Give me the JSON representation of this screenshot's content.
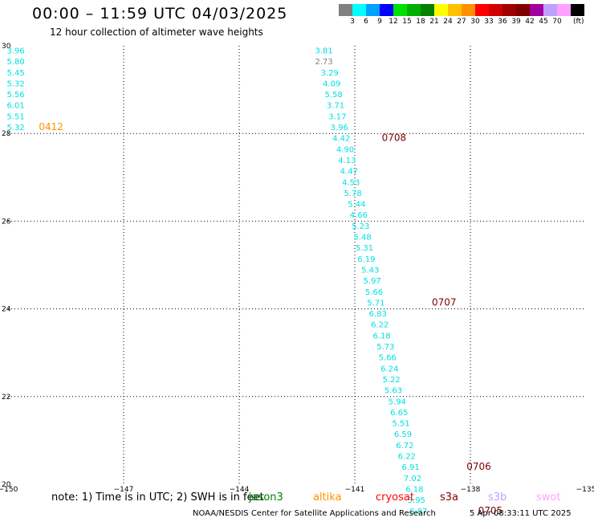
{
  "title": "00:00 – 11:59 UTC 04/03/2025",
  "subtitle": "12 hour collection of altimeter wave heights",
  "colorbar": {
    "labels": [
      "3",
      "6",
      "9",
      "12",
      "15",
      "18",
      "21",
      "24",
      "27",
      "30",
      "33",
      "36",
      "39",
      "42",
      "45",
      "70"
    ],
    "unit": "(ft)",
    "colors": [
      "#808080",
      "#00ffff",
      "#00a0ff",
      "#0000ff",
      "#00e000",
      "#00b000",
      "#008000",
      "#ffff00",
      "#ffc000",
      "#ff9000",
      "#ff0000",
      "#d00000",
      "#a00000",
      "#800000",
      "#a000a0",
      "#c0a0ff",
      "#ffa0ff",
      "#000000"
    ]
  },
  "map": {
    "lon_ticks": [
      "−150",
      "−147",
      "−144",
      "−141",
      "−138",
      "−135"
    ],
    "lat_ticks": [
      "30",
      "28",
      "26",
      "24",
      "22",
      "20"
    ],
    "lon_range": [
      -150,
      -135
    ],
    "lat_range": [
      20,
      30
    ]
  },
  "track1": {
    "color": "#00e0e0",
    "points": [
      {
        "lon": -149.8,
        "lat": 29.9,
        "v": "3.96"
      },
      {
        "lon": -149.8,
        "lat": 29.65,
        "v": "5.80"
      },
      {
        "lon": -149.8,
        "lat": 29.4,
        "v": "5.45"
      },
      {
        "lon": -149.8,
        "lat": 29.15,
        "v": "5.32"
      },
      {
        "lon": -149.8,
        "lat": 28.9,
        "v": "5.56"
      },
      {
        "lon": -149.8,
        "lat": 28.65,
        "v": "6.01"
      },
      {
        "lon": -149.8,
        "lat": 28.4,
        "v": "5.51"
      },
      {
        "lon": -149.8,
        "lat": 28.15,
        "v": "5.32"
      }
    ],
    "label": {
      "text": "0412",
      "color": "#ff9000",
      "lon": -149.2,
      "lat": 28.15
    }
  },
  "track2": {
    "color": "#00e0e0",
    "points": [
      {
        "lon": -141.8,
        "lat": 29.9,
        "v": "3.81"
      },
      {
        "lon": -141.8,
        "lat": 29.65,
        "v": "2.73",
        "color": "#808080"
      },
      {
        "lon": -141.65,
        "lat": 29.4,
        "v": "3.29"
      },
      {
        "lon": -141.6,
        "lat": 29.15,
        "v": "4.09"
      },
      {
        "lon": -141.55,
        "lat": 28.9,
        "v": "5.58"
      },
      {
        "lon": -141.5,
        "lat": 28.65,
        "v": "3.71"
      },
      {
        "lon": -141.45,
        "lat": 28.4,
        "v": "3.17"
      },
      {
        "lon": -141.4,
        "lat": 28.15,
        "v": "3.96"
      },
      {
        "lon": -141.35,
        "lat": 27.9,
        "v": "4.42"
      },
      {
        "lon": -141.25,
        "lat": 27.65,
        "v": "4.90"
      },
      {
        "lon": -141.2,
        "lat": 27.4,
        "v": "4.13"
      },
      {
        "lon": -141.15,
        "lat": 27.15,
        "v": "4.47"
      },
      {
        "lon": -141.1,
        "lat": 26.9,
        "v": "4.53"
      },
      {
        "lon": -141.05,
        "lat": 26.65,
        "v": "5.78"
      },
      {
        "lon": -140.95,
        "lat": 26.4,
        "v": "5.44"
      },
      {
        "lon": -140.9,
        "lat": 26.15,
        "v": "4.66"
      },
      {
        "lon": -140.85,
        "lat": 25.9,
        "v": "5.23"
      },
      {
        "lon": -140.8,
        "lat": 25.65,
        "v": "5.48"
      },
      {
        "lon": -140.75,
        "lat": 25.4,
        "v": "5.31"
      },
      {
        "lon": -140.7,
        "lat": 25.15,
        "v": "6.19"
      },
      {
        "lon": -140.6,
        "lat": 24.9,
        "v": "5.43"
      },
      {
        "lon": -140.55,
        "lat": 24.65,
        "v": "5.97"
      },
      {
        "lon": -140.5,
        "lat": 24.4,
        "v": "5.66"
      },
      {
        "lon": -140.45,
        "lat": 24.15,
        "v": "5.71"
      },
      {
        "lon": -140.4,
        "lat": 23.9,
        "v": "6.83"
      },
      {
        "lon": -140.35,
        "lat": 23.65,
        "v": "6.22"
      },
      {
        "lon": -140.3,
        "lat": 23.4,
        "v": "6.18"
      },
      {
        "lon": -140.2,
        "lat": 23.15,
        "v": "5.73"
      },
      {
        "lon": -140.15,
        "lat": 22.9,
        "v": "5.66"
      },
      {
        "lon": -140.1,
        "lat": 22.65,
        "v": "6.24"
      },
      {
        "lon": -140.05,
        "lat": 22.4,
        "v": "5.22"
      },
      {
        "lon": -140.0,
        "lat": 22.15,
        "v": "5.63"
      },
      {
        "lon": -139.9,
        "lat": 21.9,
        "v": "5.94"
      },
      {
        "lon": -139.85,
        "lat": 21.65,
        "v": "6.65"
      },
      {
        "lon": -139.8,
        "lat": 21.4,
        "v": "5.51"
      },
      {
        "lon": -139.75,
        "lat": 21.15,
        "v": "6.59"
      },
      {
        "lon": -139.7,
        "lat": 20.9,
        "v": "6.72"
      },
      {
        "lon": -139.65,
        "lat": 20.65,
        "v": "6.22"
      },
      {
        "lon": -139.55,
        "lat": 20.4,
        "v": "6.91"
      },
      {
        "lon": -139.5,
        "lat": 20.15,
        "v": "7.02"
      },
      {
        "lon": -139.45,
        "lat": 19.9,
        "v": "6.18"
      },
      {
        "lon": -139.4,
        "lat": 19.65,
        "v": "5.95"
      },
      {
        "lon": -139.35,
        "lat": 19.4,
        "v": "6.87"
      }
    ],
    "labels": [
      {
        "text": "0708",
        "color": "#800000",
        "lon": -140.3,
        "lat": 27.9
      },
      {
        "text": "0707",
        "color": "#800000",
        "lon": -139.0,
        "lat": 24.15
      },
      {
        "text": "0706",
        "color": "#800000",
        "lon": -138.1,
        "lat": 20.4
      },
      {
        "text": "0705",
        "color": "#800000",
        "lon": -137.8,
        "lat": 19.4
      }
    ]
  },
  "note": "note: 1) Time is in UTC; 2) SWH is in feet",
  "satellites": [
    {
      "name": "jason3",
      "color": "#008000",
      "left": 310
    },
    {
      "name": "altika",
      "color": "#ff9000",
      "left": 390
    },
    {
      "name": "cryosat",
      "color": "#ff0000",
      "left": 468
    },
    {
      "name": "s3a",
      "color": "#800000",
      "left": 548
    },
    {
      "name": "s3b",
      "color": "#c0a0ff",
      "left": 608
    },
    {
      "name": "swot",
      "color": "#ffa0ff",
      "left": 668
    }
  ],
  "footer": "NOAA/NESDIS Center for Satellite Applications and Research",
  "timestamp": "5 Apr 08:33:11 UTC 2025"
}
